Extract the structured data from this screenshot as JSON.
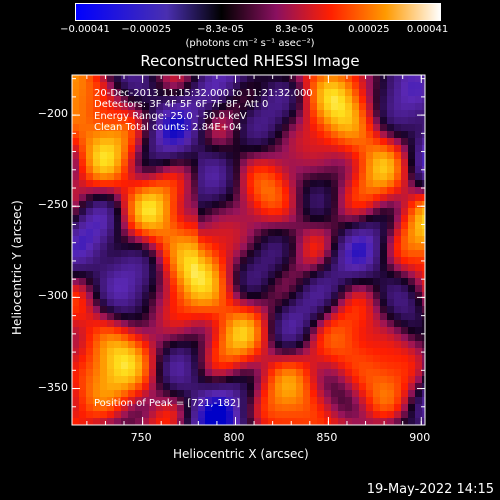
{
  "chart_data": {
    "type": "heatmap",
    "title": "Reconstructed RHESSI Image",
    "xlabel": "Heliocentric X (arcsec)",
    "ylabel": "Heliocentric Y (arcsec)",
    "xlim": [
      712,
      902
    ],
    "ylim": [
      -370,
      -178
    ],
    "xticks": [
      "750",
      "800",
      "850",
      "900"
    ],
    "xtick_values": [
      750,
      800,
      850,
      900
    ],
    "yticks": [
      "-200",
      "-250",
      "-300",
      "-350"
    ],
    "ytick_values": [
      -200,
      -250,
      -300,
      -350
    ],
    "colorbar": {
      "ticks": [
        "-0.00041",
        "-0.00025",
        "-8.3e-05",
        "8.3e-05",
        "0.00025",
        "0.00041"
      ],
      "tick_values": [
        -0.00041,
        -0.00025,
        -8.3e-05,
        8.3e-05,
        0.00025,
        0.00041
      ],
      "range": [
        -0.00041,
        0.00041
      ],
      "unit_label": "(photons cm⁻² s⁻¹ asec⁻²)"
    },
    "annotations": [
      "20-Dec-2013 11:15:32.000 to 11:21:32.000",
      "Detectors: 3F 4F 5F 6F 7F 8F, Att 0",
      "Energy Range: 25.0 - 50.0 keV",
      "Clean     Total counts: 2.84E+04"
    ],
    "peak_label": "Position of Peak = [721,-182]",
    "peak_x": 721,
    "peak_y": -182,
    "colors": [
      "#000000",
      "#0000ff",
      "#6a2fb0",
      "#b04080",
      "#ff2000",
      "#ff8c00",
      "#ffd800",
      "#ffffff"
    ]
  },
  "footer_date": "19-May-2022 14:15"
}
